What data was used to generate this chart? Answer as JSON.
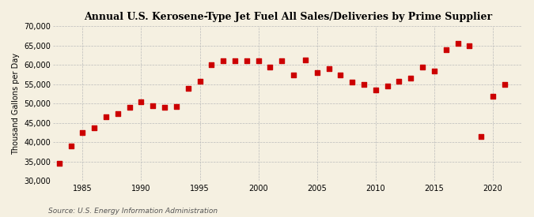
{
  "title": "Annual U.S. Kerosene-Type Jet Fuel All Sales/Deliveries by Prime Supplier",
  "ylabel": "Thousand Gallons per Day",
  "source": "Source: U.S. Energy Information Administration",
  "background_color": "#f5f0e1",
  "marker_color": "#cc0000",
  "grid_color": "#bbbbbb",
  "years": [
    1983,
    1984,
    1985,
    1986,
    1987,
    1988,
    1989,
    1990,
    1991,
    1992,
    1993,
    1994,
    1995,
    1996,
    1997,
    1998,
    1999,
    2000,
    2001,
    2002,
    2003,
    2004,
    2005,
    2006,
    2007,
    2008,
    2009,
    2010,
    2011,
    2012,
    2013,
    2014,
    2015,
    2016,
    2017,
    2018,
    2019,
    2020,
    2021
  ],
  "values": [
    34500,
    39000,
    42500,
    43800,
    46500,
    47500,
    49000,
    50500,
    49500,
    49000,
    49200,
    54000,
    55700,
    60000,
    61000,
    61100,
    61000,
    61000,
    59500,
    61000,
    57500,
    61300,
    58000,
    59000,
    57500,
    55500,
    55000,
    53500,
    54500,
    55700,
    56500,
    59500,
    58500,
    64000,
    65500,
    65000,
    41500,
    52000,
    55000
  ]
}
